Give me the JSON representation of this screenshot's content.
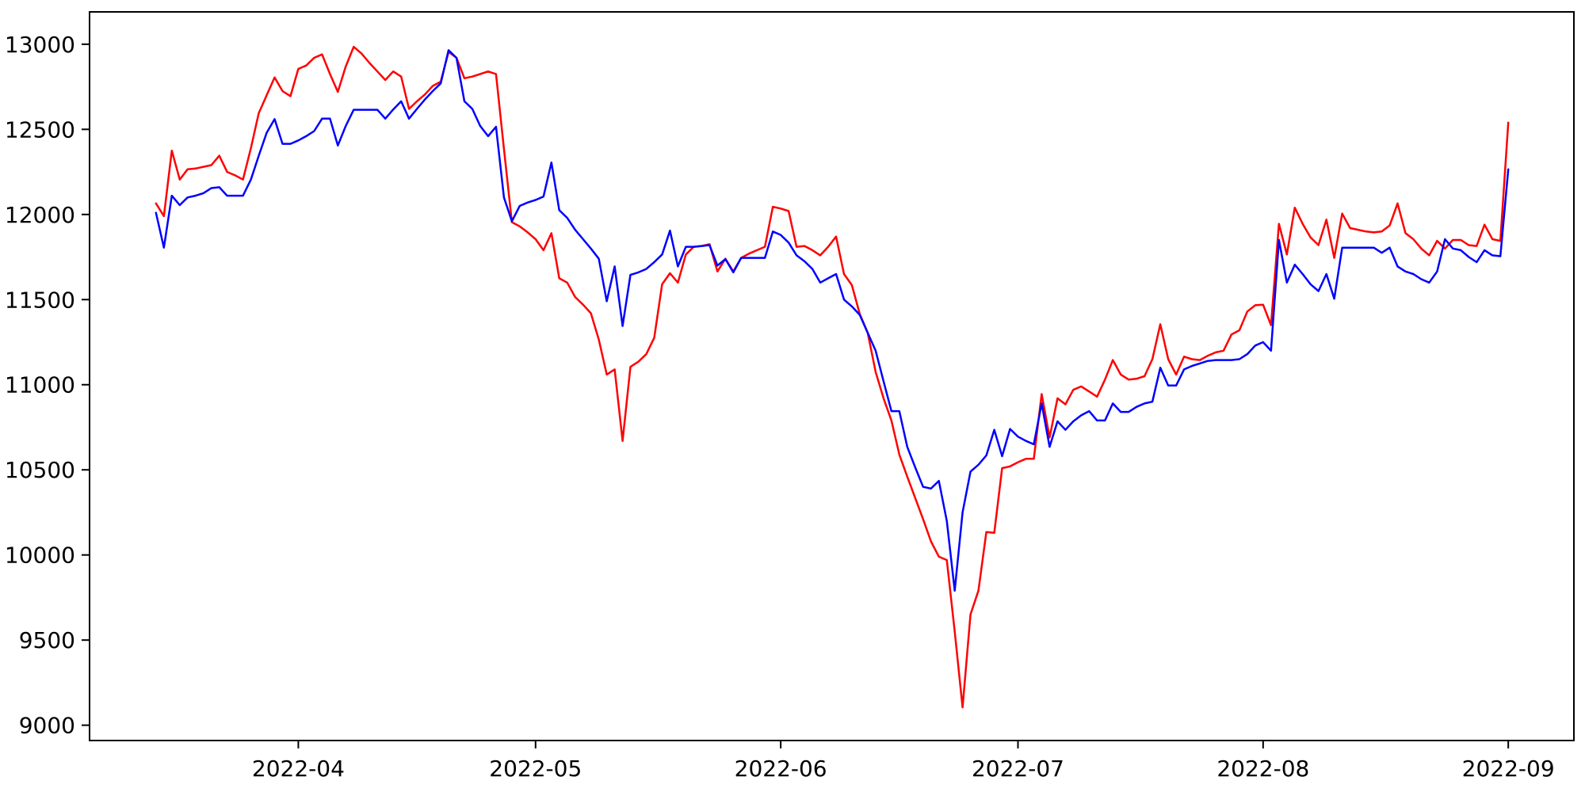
{
  "figure": {
    "background_color": "#ffffff",
    "axis_frame_color": "#000000",
    "title": ""
  },
  "chart_data": {
    "type": "line",
    "title": "",
    "xlabel": "",
    "ylabel": "",
    "grid": false,
    "legend": "none",
    "x_start_date": "2022-03-14",
    "x_unit": "day",
    "x_tick_positions": [
      18,
      48,
      79,
      109,
      140,
      171
    ],
    "x_tick_labels": [
      "2022-04",
      "2022-05",
      "2022-06",
      "2022-07",
      "2022-08",
      "2022-09"
    ],
    "y_ticks": [
      9000,
      9500,
      10000,
      10500,
      11000,
      11500,
      12000,
      12500,
      13000
    ],
    "ylim": [
      8910,
      13190
    ],
    "xlim_days": [
      -8.4,
      179.3
    ],
    "series": [
      {
        "name": "series-red",
        "color": "#ff0000",
        "line_width": 2.5,
        "values": [
          12065,
          11990,
          12375,
          12205,
          12265,
          12270,
          12280,
          12290,
          12345,
          12250,
          12230,
          12205,
          12390,
          12595,
          12700,
          12805,
          12725,
          12695,
          12855,
          12875,
          12920,
          12940,
          12825,
          12720,
          12870,
          12985,
          12945,
          12890,
          12840,
          12790,
          12840,
          12810,
          12620,
          12665,
          12705,
          12755,
          12780,
          12955,
          12920,
          12800,
          12810,
          12825,
          12840,
          12825,
          12385,
          11955,
          11930,
          11895,
          11855,
          11790,
          11890,
          11625,
          11600,
          11515,
          11470,
          11420,
          11265,
          11060,
          11090,
          10670,
          11105,
          11135,
          11180,
          11275,
          11590,
          11655,
          11600,
          11765,
          11810,
          11815,
          11825,
          11665,
          11740,
          11665,
          11745,
          11770,
          11790,
          11810,
          12045,
          12035,
          12020,
          11810,
          11815,
          11790,
          11760,
          11810,
          11870,
          11650,
          11585,
          11415,
          11305,
          11075,
          10920,
          10790,
          10590,
          10460,
          10335,
          10210,
          10080,
          9990,
          9970,
          9550,
          9105,
          9650,
          9790,
          10135,
          10130,
          10510,
          10520,
          10545,
          10565,
          10565,
          10945,
          10690,
          10920,
          10885,
          10970,
          10990,
          10960,
          10930,
          11030,
          11145,
          11060,
          11030,
          11035,
          11050,
          11150,
          11355,
          11150,
          11060,
          11165,
          11150,
          11145,
          11170,
          11190,
          11200,
          11295,
          11320,
          11430,
          11467,
          11470,
          11350,
          11945,
          11765,
          12040,
          11945,
          11865,
          11820,
          11970,
          11745,
          12005,
          11920,
          11910,
          11900,
          11895,
          11900,
          11935,
          12065,
          11890,
          11855,
          11800,
          11760,
          11845,
          11800,
          11850,
          11850,
          11820,
          11815,
          11940,
          11855,
          11845,
          12540
        ]
      },
      {
        "name": "series-blue",
        "color": "#0000ff",
        "line_width": 2.5,
        "values": [
          12010,
          11805,
          12110,
          12055,
          12100,
          12110,
          12125,
          12155,
          12160,
          12110,
          12110,
          12110,
          12205,
          12345,
          12480,
          12560,
          12415,
          12415,
          12435,
          12460,
          12490,
          12563,
          12563,
          12405,
          12520,
          12615,
          12615,
          12615,
          12615,
          12563,
          12617,
          12665,
          12563,
          12620,
          12675,
          12725,
          12770,
          12965,
          12920,
          12665,
          12620,
          12520,
          12460,
          12515,
          12100,
          11960,
          12050,
          12070,
          12085,
          12105,
          12305,
          12025,
          11980,
          11910,
          11855,
          11800,
          11740,
          11490,
          11695,
          11345,
          11645,
          11660,
          11680,
          11720,
          11765,
          11905,
          11695,
          11810,
          11810,
          11815,
          11820,
          11700,
          11738,
          11660,
          11745,
          11745,
          11745,
          11745,
          11900,
          11880,
          11835,
          11760,
          11725,
          11680,
          11600,
          11625,
          11650,
          11500,
          11460,
          11410,
          11305,
          11200,
          11020,
          10845,
          10845,
          10635,
          10515,
          10400,
          10390,
          10435,
          10200,
          9790,
          10250,
          10490,
          10530,
          10585,
          10735,
          10580,
          10740,
          10695,
          10670,
          10650,
          10890,
          10635,
          10785,
          10735,
          10785,
          10820,
          10845,
          10790,
          10790,
          10890,
          10840,
          10840,
          10870,
          10890,
          10900,
          11100,
          10995,
          10995,
          11090,
          11110,
          11125,
          11140,
          11145,
          11145,
          11145,
          11150,
          11180,
          11230,
          11250,
          11200,
          11850,
          11600,
          11705,
          11650,
          11590,
          11550,
          11650,
          11505,
          11805,
          11805,
          11805,
          11805,
          11805,
          11775,
          11805,
          11695,
          11665,
          11650,
          11620,
          11600,
          11665,
          11855,
          11800,
          11790,
          11750,
          11720,
          11790,
          11760,
          11755,
          12265
        ]
      }
    ]
  }
}
